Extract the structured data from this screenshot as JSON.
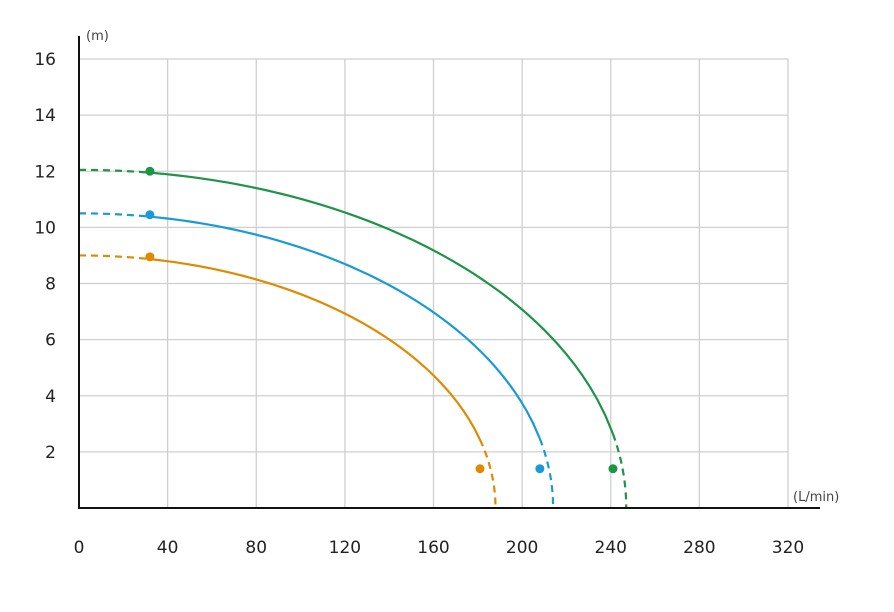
{
  "chart_data": {
    "type": "line",
    "x_unit": "(L/min)",
    "y_unit": "(m)",
    "xlim": [
      0,
      320
    ],
    "ylim": [
      0,
      16
    ],
    "x_ticks": [
      0,
      40,
      80,
      120,
      160,
      200,
      240,
      280,
      320
    ],
    "x_tick_labels": [
      "0",
      "40",
      "80",
      "120",
      "160",
      "200",
      "240",
      "280",
      "320"
    ],
    "y_ticks": [
      2,
      4,
      6,
      8,
      10,
      12,
      14,
      16
    ],
    "y_tick_labels": [
      "2",
      "4",
      "6",
      "8",
      "10",
      "12",
      "14",
      "16"
    ],
    "grid": true,
    "series": [
      {
        "color": "#e08a00",
        "shutoff_head": 9.0,
        "max_flow": 188,
        "solid_range": [
          32,
          181
        ],
        "markers": [
          [
            32,
            8.95
          ],
          [
            181,
            1.4
          ]
        ]
      },
      {
        "color": "#1a9ad6",
        "shutoff_head": 10.5,
        "max_flow": 214,
        "solid_range": [
          32,
          208
        ],
        "markers": [
          [
            32,
            10.45
          ],
          [
            208,
            1.4
          ]
        ]
      },
      {
        "color": "#1e9447",
        "shutoff_head": 12.05,
        "max_flow": 247,
        "solid_range": [
          32,
          241
        ],
        "markers": [
          [
            32,
            12.0
          ],
          [
            241,
            1.4
          ]
        ]
      }
    ]
  }
}
